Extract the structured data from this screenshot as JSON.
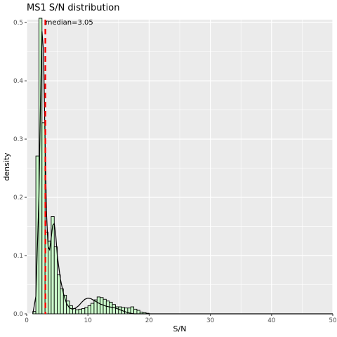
{
  "chart_data": {
    "type": "histogram",
    "title": "MS1 S/N distribution",
    "xlabel": "S/N",
    "ylabel": "density",
    "xlim": [
      0,
      50
    ],
    "ylim": [
      0,
      0.505
    ],
    "x_ticks": [
      0,
      10,
      20,
      30,
      40,
      50
    ],
    "y_ticks": [
      0.0,
      0.1,
      0.2,
      0.3,
      0.4,
      0.5
    ],
    "x_tick_labels": [
      "0",
      "10",
      "20",
      "30",
      "40",
      "50"
    ],
    "y_tick_labels": [
      "0.0",
      "0.1",
      "0.2",
      "0.3",
      "0.4",
      "0.5"
    ],
    "bin_width": 0.5,
    "bin_start": 1.0,
    "bin_densities": [
      0.004,
      0.271,
      0.51,
      0.328,
      0.14,
      0.125,
      0.167,
      0.115,
      0.067,
      0.043,
      0.032,
      0.022,
      0.014,
      0.009,
      0.007,
      0.008,
      0.009,
      0.011,
      0.014,
      0.018,
      0.024,
      0.029,
      0.028,
      0.025,
      0.022,
      0.02,
      0.016,
      0.012,
      0.012,
      0.011,
      0.01,
      0.01,
      0.012,
      0.008,
      0.006,
      0.003,
      0.002,
      0.001
    ],
    "density_curve": {
      "x": [
        1.0,
        1.5,
        2.0,
        2.25,
        2.5,
        2.75,
        3.0,
        3.25,
        3.5,
        3.75,
        4.0,
        4.25,
        4.5,
        4.75,
        5.0,
        5.5,
        6.0,
        6.5,
        7.0,
        7.5,
        8.0,
        8.5,
        9.0,
        9.5,
        10.0,
        10.5,
        11.0,
        11.5,
        12.0,
        12.5,
        13.0,
        13.5,
        14.0,
        14.5,
        15.0,
        15.5,
        16.0,
        16.5,
        17.0,
        17.5,
        18.0,
        19.0,
        20.0,
        30.0,
        40.0,
        50.0
      ],
      "y": [
        0.0,
        0.03,
        0.2,
        0.36,
        0.485,
        0.45,
        0.3,
        0.17,
        0.115,
        0.11,
        0.13,
        0.152,
        0.155,
        0.135,
        0.1,
        0.06,
        0.035,
        0.018,
        0.01,
        0.008,
        0.01,
        0.014,
        0.02,
        0.025,
        0.027,
        0.026,
        0.023,
        0.02,
        0.017,
        0.015,
        0.013,
        0.012,
        0.011,
        0.01,
        0.008,
        0.006,
        0.004,
        0.002,
        0.001,
        0.0,
        0.0,
        0.0,
        0.0,
        0.0,
        0.0,
        0.0
      ]
    },
    "median_line": {
      "x": 3.05,
      "label": "median=3.05",
      "color": "#ff0000"
    },
    "colors": {
      "panel_bg": "#ebebeb",
      "grid": "#ffffff",
      "bar_fill": "#ccffcc",
      "bar_stroke": "#000000",
      "curve": "#000000",
      "median": "#ff0000"
    },
    "grid": true,
    "legend": "none"
  }
}
